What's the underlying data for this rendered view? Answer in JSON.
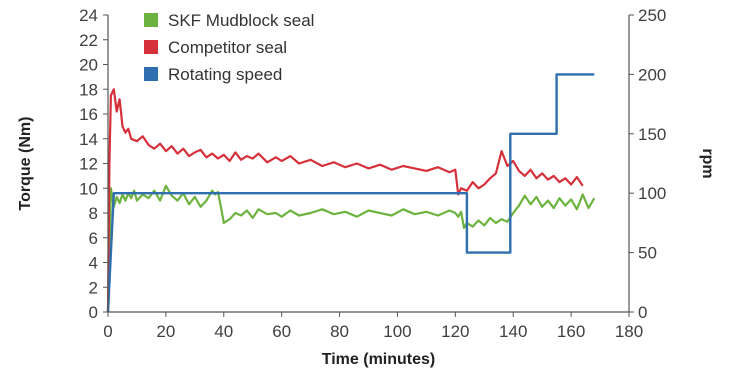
{
  "chart_data": {
    "type": "line",
    "xlabel": "Time (minutes)",
    "ylabel_left": "Torque (Nm)",
    "ylabel_right": "rpm",
    "xlim": [
      0,
      180
    ],
    "ylim_left": [
      0,
      24
    ],
    "ylim_right": [
      0,
      250
    ],
    "x_ticks": [
      0,
      20,
      40,
      60,
      80,
      100,
      120,
      140,
      160,
      180
    ],
    "y_left_ticks": [
      0,
      2,
      4,
      6,
      8,
      10,
      12,
      14,
      16,
      18,
      20,
      22,
      24
    ],
    "y_right_ticks": [
      0,
      50,
      100,
      150,
      200,
      250
    ],
    "grid": false,
    "legend_position": "top-left",
    "series": [
      {
        "name": "SKF Mudblock seal",
        "axis": "left",
        "color": "#6db33f",
        "x": [
          0,
          1,
          2,
          3,
          4,
          5,
          6,
          7,
          8,
          9,
          10,
          12,
          14,
          16,
          18,
          20,
          22,
          24,
          26,
          28,
          30,
          32,
          34,
          36,
          37,
          38,
          39,
          40,
          42,
          44,
          46,
          48,
          50,
          52,
          55,
          58,
          60,
          63,
          66,
          70,
          74,
          78,
          82,
          86,
          90,
          94,
          98,
          102,
          106,
          110,
          114,
          118,
          120,
          121,
          122,
          123,
          124,
          126,
          128,
          130,
          132,
          134,
          136,
          138,
          140,
          142,
          144,
          146,
          148,
          150,
          152,
          154,
          156,
          158,
          160,
          162,
          164,
          166,
          168
        ],
        "y": [
          0,
          10,
          8.5,
          9.3,
          8.8,
          9.5,
          9.0,
          9.6,
          9.2,
          9.8,
          9.0,
          9.5,
          9.2,
          9.8,
          9.0,
          10.2,
          9.4,
          9.0,
          9.6,
          8.7,
          9.3,
          8.5,
          9.0,
          9.8,
          9.5,
          9.7,
          8.5,
          7.2,
          7.5,
          8.0,
          7.8,
          8.2,
          7.6,
          8.3,
          7.9,
          8.0,
          7.7,
          8.2,
          7.8,
          8.0,
          8.3,
          7.9,
          8.1,
          7.7,
          8.2,
          8.0,
          7.8,
          8.3,
          7.9,
          8.1,
          7.8,
          8.2,
          8.0,
          7.7,
          8.1,
          6.8,
          7.2,
          6.9,
          7.4,
          7.0,
          7.6,
          7.2,
          7.5,
          7.3,
          8.0,
          8.6,
          9.4,
          8.7,
          9.3,
          8.5,
          9.0,
          8.4,
          9.2,
          8.6,
          9.1,
          8.3,
          9.5,
          8.4,
          9.2
        ]
      },
      {
        "name": "Competitor seal",
        "axis": "left",
        "color": "#d6303a",
        "x": [
          0,
          0.5,
          1,
          2,
          3,
          4,
          5,
          6,
          7,
          8,
          10,
          12,
          14,
          16,
          18,
          20,
          22,
          24,
          26,
          28,
          30,
          32,
          34,
          36,
          38,
          40,
          42,
          44,
          46,
          48,
          50,
          52,
          55,
          58,
          60,
          63,
          66,
          70,
          74,
          78,
          82,
          86,
          90,
          94,
          98,
          102,
          106,
          110,
          114,
          118,
          120,
          121,
          122,
          124,
          126,
          128,
          130,
          132,
          134,
          136,
          138,
          140,
          142,
          144,
          146,
          148,
          150,
          152,
          154,
          156,
          158,
          160,
          162,
          164
        ],
        "y": [
          0,
          12,
          17.5,
          18.0,
          16.2,
          17.2,
          15.0,
          14.5,
          14.8,
          14.0,
          13.8,
          14.2,
          13.5,
          13.2,
          13.6,
          13.0,
          13.4,
          12.8,
          13.2,
          12.6,
          12.9,
          13.1,
          12.5,
          12.8,
          12.4,
          12.7,
          12.2,
          12.9,
          12.3,
          12.6,
          12.4,
          12.8,
          12.1,
          12.5,
          12.2,
          12.6,
          12.0,
          12.3,
          11.8,
          12.1,
          11.7,
          12.0,
          11.6,
          11.9,
          11.5,
          11.8,
          11.6,
          11.4,
          11.7,
          11.3,
          11.5,
          9.5,
          10.0,
          9.8,
          10.5,
          10.0,
          10.3,
          10.8,
          11.2,
          13.0,
          11.8,
          12.2,
          11.4,
          11.0,
          11.5,
          10.8,
          11.2,
          10.7,
          11.0,
          10.5,
          10.8,
          10.3,
          10.9,
          10.2
        ]
      },
      {
        "name": "Rotating speed",
        "axis": "right",
        "color": "#2f6fb0",
        "x": [
          0,
          2,
          2,
          122,
          124,
          124,
          138,
          139,
          139,
          154,
          155,
          155,
          168
        ],
        "y": [
          0,
          100,
          100,
          100,
          100,
          50,
          50,
          50,
          150,
          150,
          150,
          200,
          200
        ]
      }
    ]
  }
}
